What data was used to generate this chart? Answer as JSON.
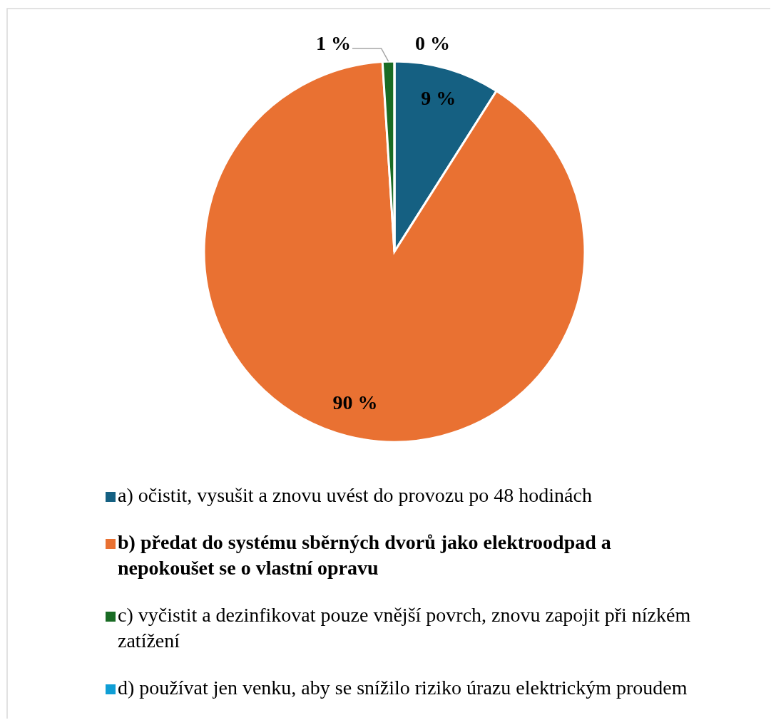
{
  "chart_data": {
    "type": "pie",
    "categories": [
      "a) očistit, vysušit a znovu uvést do provozu po 48 hodinách",
      "b) předat do systému sběrných dvorů jako elektroodpad a nepokoušet se o vlastní opravu",
      "c) vyčistit a dezinfikovat pouze vnější povrch, znovu zapojit při nízkém zatížení",
      "d) používat jen venku, aby se snížilo riziko úrazu elektrickým proudem"
    ],
    "values": [
      9,
      90,
      1,
      0
    ],
    "colors": [
      "#156082",
      "#e97132",
      "#196b24",
      "#0f9ed5"
    ],
    "value_labels": [
      "9 %",
      "90 %",
      "1 %",
      "0 %"
    ],
    "legend": "bottom"
  }
}
